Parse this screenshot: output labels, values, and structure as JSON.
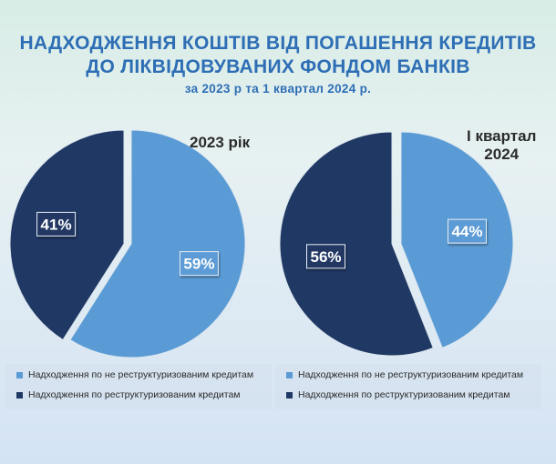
{
  "title": {
    "line1": "НАДХОДЖЕННЯ КОШТІВ ВІД ПОГАШЕННЯ КРЕДИТІВ",
    "line2": "ДО ЛІКВІДОВУВАНИХ ФОНДОМ БАНКІВ",
    "subtitle": "за 2023 р та 1 квартал 2024 р."
  },
  "colors": {
    "light": "#5b9bd5",
    "dark": "#203864",
    "title": "#2e6eb5"
  },
  "chart_data": [
    {
      "type": "pie",
      "title": "2023 рік",
      "categories": [
        "Надходження по не реструктуризованим кредитам",
        "Надходження по реструктуризованим кредитам"
      ],
      "values": [
        59,
        41
      ],
      "data_labels": [
        "59%",
        "41%"
      ],
      "legend_position": "bottom"
    },
    {
      "type": "pie",
      "title_line1": "І квартал",
      "title_line2": "2024",
      "categories": [
        "Надходження по не реструктуризованим кредитам",
        "Надходження по реструктуризованим кредитам"
      ],
      "values": [
        44,
        56
      ],
      "data_labels": [
        "44%",
        "56%"
      ],
      "legend_position": "bottom"
    }
  ]
}
